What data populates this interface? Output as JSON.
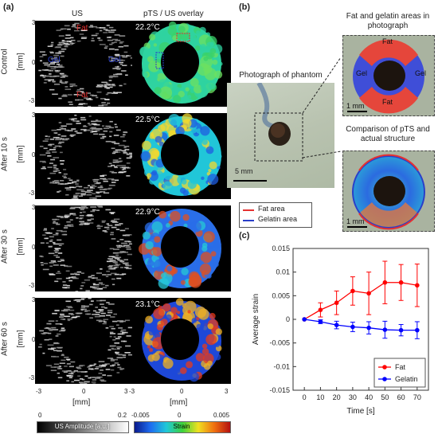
{
  "panel_a": {
    "letter": "(a)",
    "col_us": "US",
    "col_overlay": "pTS / US overlay",
    "rows": [
      {
        "label": "Control",
        "temp": "22.2°C"
      },
      {
        "label": "After 10 s",
        "temp": "22.5°C"
      },
      {
        "label": "After 30 s",
        "temp": "22.9°C"
      },
      {
        "label": "After 60 s",
        "temp": "23.1°C"
      }
    ],
    "fat_label": "Fat",
    "gel_label": "Gel",
    "y_unit": "[mm]",
    "x_unit": "[mm]",
    "y_ticks": [
      "3",
      "0",
      "-3"
    ],
    "x_ticks": [
      "-3",
      "0",
      "3"
    ],
    "colorbar_us": {
      "min": "0",
      "max": "0.2",
      "label": "US Amplitude [a.u.]"
    },
    "colorbar_strain": {
      "min": "-0.005",
      "mid": "0",
      "max": "0.005",
      "label": "Strain"
    }
  },
  "panel_b": {
    "letter": "(b)",
    "photo_title": "Photograph of phantom",
    "scale_photo": "5 mm",
    "fat_gel_title": "Fat and gelatin areas in photograph",
    "fat": "Fat",
    "gel": "Gel",
    "scale_inset": "1 mm",
    "compare_title": "Comparison of pTS and actual structure",
    "legend_fat": "Fat area",
    "legend_gel": "Gelatin area",
    "colors": {
      "fat": "#e53131",
      "gel": "#2a3fc9"
    }
  },
  "panel_c": {
    "letter": "(c)"
  },
  "chart_data": {
    "type": "line",
    "x": [
      0,
      10,
      20,
      30,
      40,
      50,
      60,
      70
    ],
    "xlabel": "Time [s]",
    "ylabel": "Average strain",
    "xlim": [
      -7,
      77
    ],
    "ylim": [
      -0.015,
      0.015
    ],
    "xticks": [
      0,
      10,
      20,
      30,
      40,
      50,
      60,
      70
    ],
    "yticks": [
      -0.015,
      -0.01,
      -0.005,
      0,
      0.005,
      0.01,
      0.015
    ],
    "ytick_labels": [
      "-0.015",
      "-0.01",
      "-0.005",
      "0",
      "0.005",
      "0.01",
      "0.015"
    ],
    "legend_position": "bottom-right",
    "series": [
      {
        "name": "Fat",
        "color": "#ff0000",
        "values": [
          0.0,
          0.002,
          0.0035,
          0.006,
          0.0055,
          0.0078,
          0.0078,
          0.0072
        ],
        "errors": [
          0.0,
          0.0015,
          0.0025,
          0.003,
          0.0045,
          0.0045,
          0.0038,
          0.0045
        ]
      },
      {
        "name": "Gelatin",
        "color": "#0000ff",
        "values": [
          0.0,
          -0.0005,
          -0.0012,
          -0.0016,
          -0.0018,
          -0.0022,
          -0.0023,
          -0.0023
        ],
        "errors": [
          0.0,
          0.0004,
          0.0008,
          0.001,
          0.0013,
          0.0018,
          0.0012,
          0.0018
        ]
      }
    ]
  }
}
